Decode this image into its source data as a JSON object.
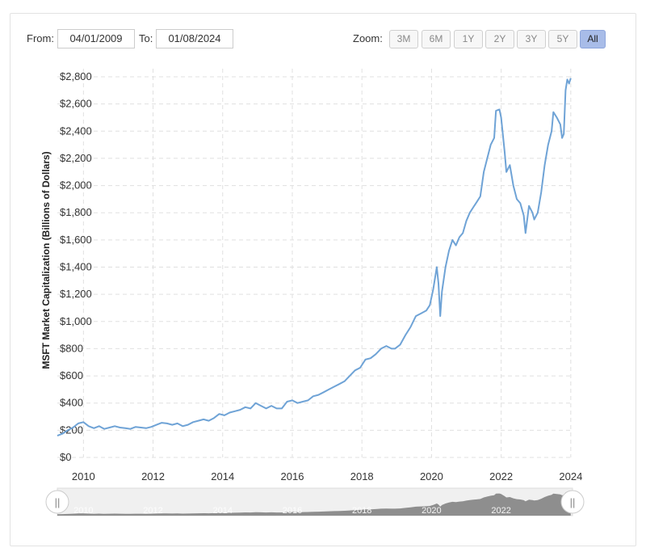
{
  "controls": {
    "from_label": "From:",
    "from_value": "04/01/2009",
    "to_label": "To:",
    "to_value": "01/08/2024",
    "zoom_label": "Zoom:",
    "zoom_buttons": [
      "3M",
      "6M",
      "1Y",
      "2Y",
      "3Y",
      "5Y",
      "All"
    ],
    "zoom_active": "All"
  },
  "navigator": {
    "tick_labels": [
      "2010",
      "2012",
      "2014",
      "2016",
      "2018",
      "2020",
      "2022"
    ],
    "handle_glyph": "||"
  },
  "colors": {
    "line": "#6fa3d6",
    "grid": "#e0e0e0",
    "navigator_fill": "#8e8e8e",
    "zoom_active": "#a8bce8"
  },
  "chart_data": {
    "type": "line",
    "title": "",
    "xlabel": "",
    "ylabel": "MSFT Market Capitalization (Billions of Dollars)",
    "xlim": [
      2009.25,
      2024.05
    ],
    "ylim": [
      0,
      2800
    ],
    "y_ticks": [
      0,
      200,
      400,
      600,
      800,
      1000,
      1200,
      1400,
      1600,
      1800,
      2000,
      2200,
      2400,
      2600,
      2800
    ],
    "y_tick_labels": [
      "$0",
      "$200",
      "$400",
      "$600",
      "$800",
      "$1,000",
      "$1,200",
      "$1,400",
      "$1,600",
      "$1,800",
      "$2,000",
      "$2,200",
      "$2,400",
      "$2,600",
      "$2,800"
    ],
    "x_ticks": [
      2010,
      2012,
      2014,
      2016,
      2018,
      2020,
      2022,
      2024
    ],
    "x_tick_labels": [
      "2010",
      "2012",
      "2014",
      "2016",
      "2018",
      "2020",
      "2022",
      "2024"
    ],
    "grid": true,
    "series": [
      {
        "x": [
          2009.25,
          2009.4,
          2009.55,
          2009.7,
          2009.85,
          2010.0,
          2010.15,
          2010.3,
          2010.45,
          2010.6,
          2010.75,
          2010.9,
          2011.05,
          2011.2,
          2011.35,
          2011.5,
          2011.65,
          2011.8,
          2011.95,
          2012.1,
          2012.25,
          2012.4,
          2012.55,
          2012.7,
          2012.85,
          2013.0,
          2013.15,
          2013.3,
          2013.45,
          2013.6,
          2013.75,
          2013.9,
          2014.05,
          2014.2,
          2014.35,
          2014.5,
          2014.65,
          2014.8,
          2014.95,
          2015.1,
          2015.25,
          2015.4,
          2015.55,
          2015.7,
          2015.85,
          2016.0,
          2016.15,
          2016.3,
          2016.45,
          2016.6,
          2016.75,
          2016.9,
          2017.05,
          2017.2,
          2017.35,
          2017.5,
          2017.65,
          2017.8,
          2017.95,
          2018.1,
          2018.25,
          2018.4,
          2018.55,
          2018.7,
          2018.85,
          2018.95,
          2019.1,
          2019.25,
          2019.4,
          2019.55,
          2019.7,
          2019.85,
          2019.95,
          2020.05,
          2020.15,
          2020.2,
          2020.25,
          2020.3,
          2020.4,
          2020.5,
          2020.6,
          2020.7,
          2020.8,
          2020.9,
          2021.0,
          2021.1,
          2021.2,
          2021.3,
          2021.4,
          2021.5,
          2021.6,
          2021.7,
          2021.8,
          2021.85,
          2021.95,
          2022.0,
          2022.1,
          2022.15,
          2022.25,
          2022.35,
          2022.45,
          2022.55,
          2022.65,
          2022.7,
          2022.8,
          2022.9,
          2022.95,
          2023.05,
          2023.15,
          2023.25,
          2023.35,
          2023.45,
          2023.5,
          2023.6,
          2023.7,
          2023.75,
          2023.8,
          2023.85,
          2023.9,
          2023.95,
          2024.0
        ],
        "values": [
          160,
          175,
          200,
          220,
          250,
          260,
          230,
          215,
          230,
          210,
          220,
          230,
          220,
          215,
          210,
          225,
          220,
          215,
          225,
          240,
          255,
          250,
          240,
          250,
          230,
          240,
          260,
          270,
          280,
          270,
          290,
          320,
          310,
          330,
          340,
          350,
          370,
          360,
          400,
          380,
          360,
          380,
          360,
          360,
          410,
          420,
          400,
          410,
          420,
          450,
          460,
          480,
          500,
          520,
          540,
          560,
          600,
          640,
          660,
          720,
          730,
          760,
          800,
          820,
          800,
          800,
          830,
          900,
          960,
          1040,
          1060,
          1080,
          1120,
          1240,
          1400,
          1280,
          1040,
          1220,
          1400,
          1520,
          1600,
          1560,
          1620,
          1650,
          1740,
          1800,
          1840,
          1880,
          1920,
          2100,
          2200,
          2300,
          2350,
          2550,
          2560,
          2500,
          2250,
          2100,
          2150,
          2000,
          1900,
          1870,
          1780,
          1650,
          1850,
          1800,
          1750,
          1800,
          1950,
          2150,
          2300,
          2400,
          2540,
          2500,
          2450,
          2350,
          2380,
          2700,
          2780,
          2750,
          2790
        ]
      }
    ]
  }
}
